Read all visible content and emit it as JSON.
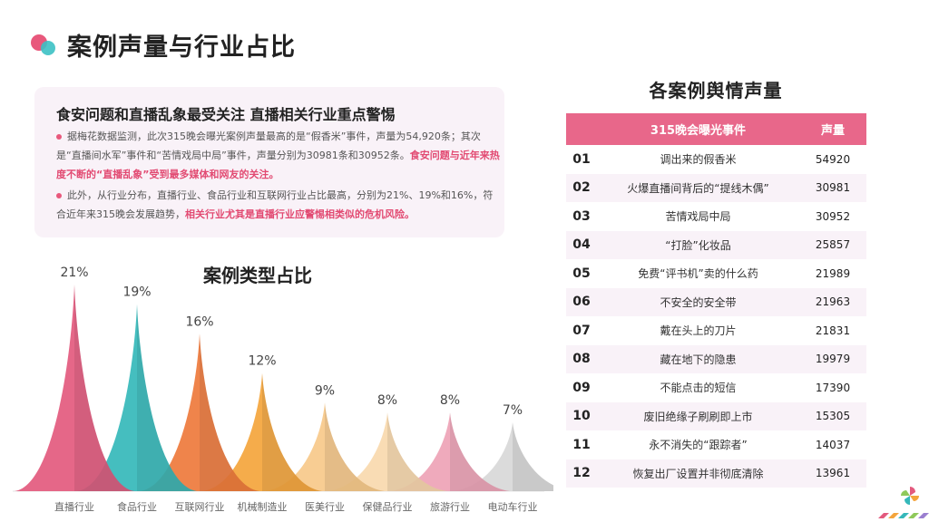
{
  "page": {
    "title": "案例声量与行业占比"
  },
  "summary": {
    "heading": "食安问题和直播乱象最受关注   直播相关行业重点警惕",
    "p1_text": "据梅花数据监测，此次315晚会曝光案例声量最高的是“假香米”事件，声量为54,920条；其次是“直播间水军”事件和“苦情戏局中局”事件，声量分别为30981条和30952条。",
    "p1_highlight": "食安问题与近年来热度不断的“直播乱象”受到最多媒体和网友的关注。",
    "p2_text": "此外，从行业分布，直播行业、食品行业和互联网行业占比最高，分别为21%、19%和16%，符合近年来315晚会发展趋势，",
    "p2_highlight": "相关行业尤其是直播行业应警惕相类似的危机风险。"
  },
  "chart_data": {
    "type": "area",
    "title": "案例类型占比",
    "categories": [
      "直播行业",
      "食品行业",
      "互联网行业",
      "机械制造业",
      "医美行业",
      "保健品行业",
      "旅游行业",
      "电动车行业"
    ],
    "values": [
      21,
      19,
      16,
      12,
      9,
      8,
      8,
      7
    ],
    "value_labels": [
      "21%",
      "19%",
      "16%",
      "12%",
      "9%",
      "8%",
      "8%",
      "7%"
    ],
    "unit": "%",
    "colors": [
      "#e35a7e",
      "#35b8ba",
      "#ee7a3c",
      "#f4a53c",
      "#f7c98a",
      "#f8d9ae",
      "#eea3b6",
      "#d8d8d8"
    ],
    "legend": "none",
    "grid": false
  },
  "table": {
    "title": "各案例舆情声量",
    "headers": [
      "",
      "315晚会曝光事件",
      "声量"
    ],
    "rows": [
      {
        "num": "01",
        "name": "调出来的假香米",
        "volume": "54920"
      },
      {
        "num": "02",
        "name": "火爆直播间背后的“提线木偶”",
        "volume": "30981"
      },
      {
        "num": "03",
        "name": "苦情戏局中局",
        "volume": "30952"
      },
      {
        "num": "04",
        "name": "“打脸”化妆品",
        "volume": "25857"
      },
      {
        "num": "05",
        "name": "免费“评书机”卖的什么药",
        "volume": "21989"
      },
      {
        "num": "06",
        "name": "不安全的安全带",
        "volume": "21963"
      },
      {
        "num": "07",
        "name": "戴在头上的刀片",
        "volume": "21831"
      },
      {
        "num": "08",
        "name": "藏在地下的隐患",
        "volume": "19979"
      },
      {
        "num": "09",
        "name": "不能点击的短信",
        "volume": "17390"
      },
      {
        "num": "10",
        "name": "废旧绝缘子刷刷即上市",
        "volume": "15305"
      },
      {
        "num": "11",
        "name": "永不消失的“跟踪者”",
        "volume": "14037"
      },
      {
        "num": "12",
        "name": "恢复出厂设置并非彻底清除",
        "volume": "13961"
      }
    ]
  },
  "icons": {
    "title_icon": "two-dots-icon",
    "brand_logo": "pinwheel-logo-icon"
  }
}
